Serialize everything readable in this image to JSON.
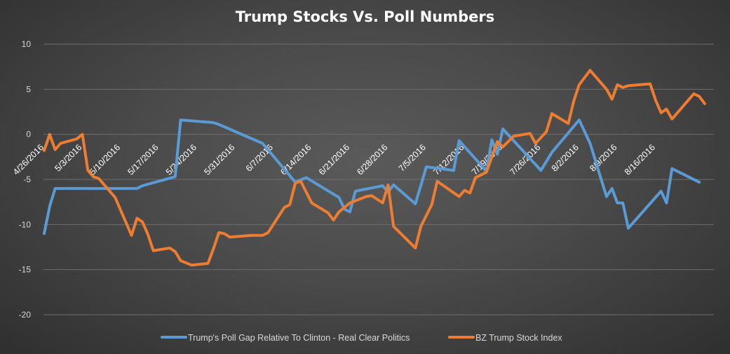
{
  "chart_data": {
    "type": "line",
    "title": "Trump Stocks Vs. Poll Numbers",
    "xlabel": "",
    "ylabel": "",
    "ylim": [
      -20,
      10
    ],
    "yticks": [
      "10",
      "5",
      "0",
      "-5",
      "-10",
      "-15",
      "-20"
    ],
    "xtick_labels": [
      "4/26/2016",
      "5/3/2016",
      "5/10/2016",
      "5/17/2016",
      "5/24/2016",
      "5/31/2016",
      "6/7/2016",
      "6/14/2016",
      "6/21/2016",
      "6/28/2016",
      "7/5/2016",
      "7/12/2016",
      "7/19/2016",
      "7/26/2016",
      "8/2/2016",
      "8/9/2016",
      "8/16/2016"
    ],
    "grid": true,
    "legend_position": "bottom",
    "series": [
      {
        "name": "Trump's Poll Gap Relative To Clinton - Real Clear Politics",
        "color": "#5b9bd5",
        "points": [
          [
            "4/26/2016",
            -11
          ],
          [
            "4/27/2016",
            -8
          ],
          [
            "4/28/2016",
            -6
          ],
          [
            "5/9/2016",
            -6
          ],
          [
            "5/13/2016",
            -6
          ],
          [
            "5/14/2016",
            -5.7
          ],
          [
            "5/20/2016",
            -4.7
          ],
          [
            "5/21/2016",
            1.6
          ],
          [
            "5/27/2016",
            1.3
          ],
          [
            "5/28/2016",
            1.1
          ],
          [
            "6/5/2016",
            -1.0
          ],
          [
            "6/11/2016",
            -5.3
          ],
          [
            "6/13/2016",
            -4.8
          ],
          [
            "6/19/2016",
            -7.0
          ],
          [
            "6/20/2016",
            -8.3
          ],
          [
            "6/21/2016",
            -8.6
          ],
          [
            "6/22/2016",
            -6.3
          ],
          [
            "6/27/2016",
            -5.7
          ],
          [
            "6/28/2016",
            -6.4
          ],
          [
            "6/29/2016",
            -5.6
          ],
          [
            "7/3/2016",
            -7.7
          ],
          [
            "7/5/2016",
            -3.6
          ],
          [
            "7/10/2016",
            -4.0
          ],
          [
            "7/11/2016",
            -0.7
          ],
          [
            "7/15/2016",
            -3.4
          ],
          [
            "7/16/2016",
            -4.1
          ],
          [
            "7/17/2016",
            -0.6
          ],
          [
            "7/18/2016",
            -2.2
          ],
          [
            "7/19/2016",
            0.6
          ],
          [
            "7/26/2016",
            -4.0
          ],
          [
            "7/28/2016",
            -2.0
          ],
          [
            "8/2/2016",
            1.6
          ],
          [
            "8/4/2016",
            -1.0
          ],
          [
            "8/7/2016",
            -6.9
          ],
          [
            "8/8/2016",
            -6.0
          ],
          [
            "8/9/2016",
            -7.6
          ],
          [
            "8/10/2016",
            -7.6
          ],
          [
            "8/11/2016",
            -10.4
          ],
          [
            "8/17/2016",
            -6.3
          ],
          [
            "8/18/2016",
            -7.6
          ],
          [
            "8/19/2016",
            -3.8
          ],
          [
            "8/24/2016",
            -5.3
          ]
        ]
      },
      {
        "name": "BZ Trump Stock Index",
        "color": "#ed7d31",
        "points": [
          [
            "4/26/2016",
            -1.8
          ],
          [
            "4/27/2016",
            0.0
          ],
          [
            "4/28/2016",
            -1.7
          ],
          [
            "4/29/2016",
            -1.0
          ],
          [
            "5/2/2016",
            -0.5
          ],
          [
            "5/3/2016",
            0.0
          ],
          [
            "5/4/2016",
            -4.0
          ],
          [
            "5/5/2016",
            -4.7
          ],
          [
            "5/6/2016",
            -4.9
          ],
          [
            "5/9/2016",
            -7.0
          ],
          [
            "5/12/2016",
            -11.2
          ],
          [
            "5/13/2016",
            -9.3
          ],
          [
            "5/14/2016",
            -9.7
          ],
          [
            "5/15/2016",
            -11.1
          ],
          [
            "5/16/2016",
            -12.9
          ],
          [
            "5/19/2016",
            -12.6
          ],
          [
            "5/20/2016",
            -13.0
          ],
          [
            "5/21/2016",
            -14.0
          ],
          [
            "5/23/2016",
            -14.5
          ],
          [
            "5/26/2016",
            -14.3
          ],
          [
            "5/27/2016",
            -12.7
          ],
          [
            "5/28/2016",
            -10.9
          ],
          [
            "5/29/2016",
            -11.0
          ],
          [
            "5/30/2016",
            -11.4
          ],
          [
            "6/3/2016",
            -11.2
          ],
          [
            "6/5/2016",
            -11.2
          ],
          [
            "6/6/2016",
            -10.9
          ],
          [
            "6/9/2016",
            -8.1
          ],
          [
            "6/10/2016",
            -7.8
          ],
          [
            "6/11/2016",
            -5.4
          ],
          [
            "6/12/2016",
            -5.2
          ],
          [
            "6/14/2016",
            -7.6
          ],
          [
            "6/17/2016",
            -8.7
          ],
          [
            "6/18/2016",
            -9.5
          ],
          [
            "6/19/2016",
            -8.6
          ],
          [
            "6/21/2016",
            -7.6
          ],
          [
            "6/24/2016",
            -6.9
          ],
          [
            "6/25/2016",
            -6.8
          ],
          [
            "6/27/2016",
            -7.6
          ],
          [
            "6/28/2016",
            -5.6
          ],
          [
            "6/29/2016",
            -10.2
          ],
          [
            "7/3/2016",
            -12.6
          ],
          [
            "7/4/2016",
            -10.2
          ],
          [
            "7/6/2016",
            -7.8
          ],
          [
            "7/7/2016",
            -5.2
          ],
          [
            "7/11/2016",
            -6.9
          ],
          [
            "7/12/2016",
            -6.2
          ],
          [
            "7/13/2016",
            -6.5
          ],
          [
            "7/14/2016",
            -4.8
          ],
          [
            "7/16/2016",
            -4.2
          ],
          [
            "7/18/2016",
            -0.8
          ],
          [
            "7/19/2016",
            -1.4
          ],
          [
            "7/21/2016",
            -0.2
          ],
          [
            "7/24/2016",
            0.1
          ],
          [
            "7/25/2016",
            -1.0
          ],
          [
            "7/27/2016",
            0.3
          ],
          [
            "7/28/2016",
            2.3
          ],
          [
            "7/31/2016",
            1.2
          ],
          [
            "8/1/2016",
            3.7
          ],
          [
            "8/2/2016",
            5.5
          ],
          [
            "8/4/2016",
            7.1
          ],
          [
            "8/7/2016",
            5.0
          ],
          [
            "8/8/2016",
            3.9
          ],
          [
            "8/9/2016",
            5.5
          ],
          [
            "8/10/2016",
            5.2
          ],
          [
            "8/11/2016",
            5.4
          ],
          [
            "8/15/2016",
            5.6
          ],
          [
            "8/16/2016",
            3.8
          ],
          [
            "8/17/2016",
            2.4
          ],
          [
            "8/18/2016",
            2.8
          ],
          [
            "8/19/2016",
            1.7
          ],
          [
            "8/23/2016",
            4.5
          ],
          [
            "8/24/2016",
            4.2
          ],
          [
            "8/25/2016",
            3.4
          ]
        ]
      }
    ]
  }
}
